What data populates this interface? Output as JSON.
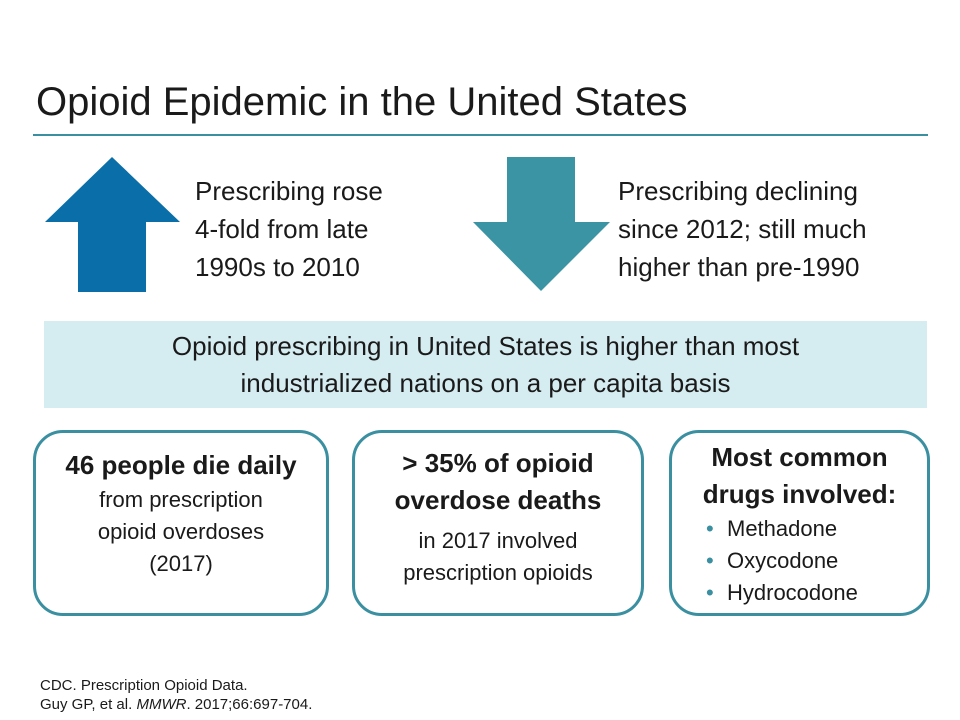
{
  "title": "Opioid Epidemic in the United States",
  "trends": [
    {
      "lines": [
        "Prescribing rose",
        "4-fold from late",
        "1990s to 2010"
      ]
    },
    {
      "lines": [
        "Prescribing declining",
        "since 2012; still much",
        "higher than pre-1990"
      ]
    }
  ],
  "banner": {
    "lines": [
      "Opioid prescribing in United States is higher than most",
      "industrialized nations on a per capita basis"
    ]
  },
  "boxes": [
    {
      "bold_lines": [
        "46 people die daily"
      ],
      "lines": [
        "from prescription",
        "opioid overdoses",
        "(2017)"
      ]
    },
    {
      "bold_lines": [
        "> 35% of opioid",
        "overdose deaths"
      ],
      "lines": [
        "in 2017 involved",
        "prescription opioids"
      ]
    },
    {
      "bold_lines": [
        "Most common",
        "drugs involved:"
      ],
      "bullets": [
        "Methadone",
        "Oxycodone",
        "Hydrocodone"
      ]
    }
  ],
  "citations": [
    {
      "parts": [
        "CDC. Prescription Opioid Data."
      ]
    },
    {
      "parts": [
        "Guy GP, et al. ",
        "MMWR",
        ". 2017;66:697-704."
      ]
    }
  ]
}
